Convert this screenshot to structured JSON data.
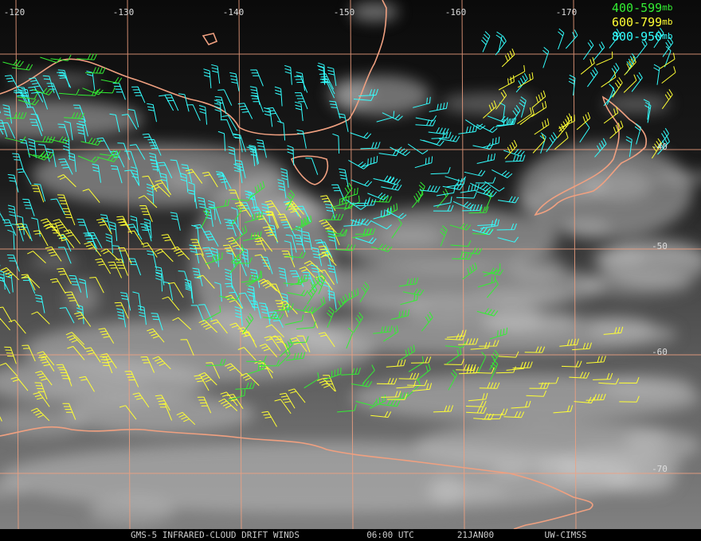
{
  "map": {
    "lon_labels": [
      "-120",
      "-130",
      "-140",
      "-150",
      "-160",
      "-170"
    ],
    "lat_labels": [
      "-40",
      "-50",
      "-60",
      "-70"
    ],
    "legend": [
      {
        "level": "400-599",
        "unit": "mb",
        "color": "#33ee33"
      },
      {
        "level": "600-799",
        "unit": "mb",
        "color": "#ffff33"
      },
      {
        "level": "800-950",
        "unit": "mb",
        "color": "#33ffff"
      }
    ],
    "footer": [
      "GMS-5 INFRARED-CLOUD DRIFT WINDS",
      "06:00 UTC",
      "21JAN00",
      "UW-CIMSS"
    ]
  }
}
